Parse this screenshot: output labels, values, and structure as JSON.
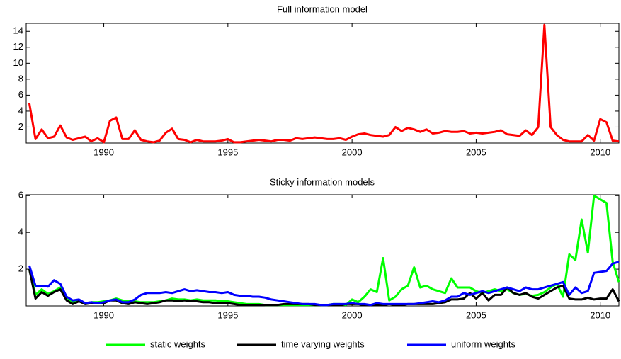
{
  "chart_data": [
    {
      "type": "line",
      "title": "Full information model",
      "x": [
        1987,
        1987.25,
        1987.5,
        1987.75,
        1988,
        1988.25,
        1988.5,
        1988.75,
        1989,
        1989.25,
        1989.5,
        1989.75,
        1990,
        1990.25,
        1990.5,
        1990.75,
        1991,
        1991.25,
        1991.5,
        1991.75,
        1992,
        1992.25,
        1992.5,
        1992.75,
        1993,
        1993.25,
        1993.5,
        1993.75,
        1994,
        1994.25,
        1994.5,
        1994.75,
        1995,
        1995.25,
        1995.5,
        1995.75,
        1996,
        1996.25,
        1996.5,
        1996.75,
        1997,
        1997.25,
        1997.5,
        1997.75,
        1998,
        1998.25,
        1998.5,
        1998.75,
        1999,
        1999.25,
        1999.5,
        1999.75,
        2000,
        2000.25,
        2000.5,
        2000.75,
        2001,
        2001.25,
        2001.5,
        2001.75,
        2002,
        2002.25,
        2002.5,
        2002.75,
        2003,
        2003.25,
        2003.5,
        2003.75,
        2004,
        2004.25,
        2004.5,
        2004.75,
        2005,
        2005.25,
        2005.5,
        2005.75,
        2006,
        2006.25,
        2006.5,
        2006.75,
        2007,
        2007.25,
        2007.5,
        2007.75,
        2008,
        2008.25,
        2008.5,
        2008.75,
        2009,
        2009.25,
        2009.5,
        2009.75,
        2010,
        2010.25,
        2010.5,
        2010.75
      ],
      "series": [
        {
          "color": "#ff0000",
          "values": [
            5.0,
            0.5,
            1.7,
            0.6,
            0.8,
            2.2,
            0.7,
            0.4,
            0.6,
            0.8,
            0.2,
            0.6,
            0.1,
            2.8,
            3.2,
            0.5,
            0.5,
            1.6,
            0.4,
            0.2,
            0.1,
            0.3,
            1.3,
            1.8,
            0.5,
            0.4,
            0.1,
            0.4,
            0.2,
            0.2,
            0.2,
            0.3,
            0.5,
            0.1,
            0.1,
            0.2,
            0.3,
            0.4,
            0.3,
            0.2,
            0.4,
            0.4,
            0.3,
            0.6,
            0.5,
            0.6,
            0.7,
            0.6,
            0.5,
            0.5,
            0.6,
            0.4,
            0.8,
            1.1,
            1.2,
            1.0,
            0.9,
            0.8,
            1.0,
            2.0,
            1.5,
            1.9,
            1.7,
            1.4,
            1.7,
            1.2,
            1.3,
            1.5,
            1.4,
            1.4,
            1.5,
            1.2,
            1.3,
            1.2,
            1.3,
            1.4,
            1.6,
            1.1,
            1.0,
            0.9,
            1.6,
            1.0,
            2.0,
            14.8,
            2.0,
            1.0,
            0.4,
            0.2,
            0.2,
            0.2,
            1.0,
            0.3,
            3.0,
            2.6,
            0.3,
            0.2
          ]
        }
      ],
      "xlim": [
        1986.875,
        2010.75
      ],
      "xticks": [
        1990,
        1995,
        2000,
        2005,
        2010
      ],
      "ylim": [
        0,
        15
      ],
      "yticks": [
        2,
        4,
        6,
        8,
        10,
        12,
        14
      ]
    },
    {
      "type": "line",
      "title": "Sticky information models",
      "x": [
        1987,
        1987.25,
        1987.5,
        1987.75,
        1988,
        1988.25,
        1988.5,
        1988.75,
        1989,
        1989.25,
        1989.5,
        1989.75,
        1990,
        1990.25,
        1990.5,
        1990.75,
        1991,
        1991.25,
        1991.5,
        1991.75,
        1992,
        1992.25,
        1992.5,
        1992.75,
        1993,
        1993.25,
        1993.5,
        1993.75,
        1994,
        1994.25,
        1994.5,
        1994.75,
        1995,
        1995.25,
        1995.5,
        1995.75,
        1996,
        1996.25,
        1996.5,
        1996.75,
        1997,
        1997.25,
        1997.5,
        1997.75,
        1998,
        1998.25,
        1998.5,
        1998.75,
        1999,
        1999.25,
        1999.5,
        1999.75,
        2000,
        2000.25,
        2000.5,
        2000.75,
        2001,
        2001.25,
        2001.5,
        2001.75,
        2002,
        2002.25,
        2002.5,
        2002.75,
        2003,
        2003.25,
        2003.5,
        2003.75,
        2004,
        2004.25,
        2004.5,
        2004.75,
        2005,
        2005.25,
        2005.5,
        2005.75,
        2006,
        2006.25,
        2006.5,
        2006.75,
        2007,
        2007.25,
        2007.5,
        2007.75,
        2008,
        2008.25,
        2008.5,
        2008.75,
        2009,
        2009.25,
        2009.5,
        2009.75,
        2010,
        2010.25,
        2010.5,
        2010.75
      ],
      "series": [
        {
          "name": "static weights",
          "color": "#00ff00",
          "values": [
            2.0,
            0.6,
            0.9,
            0.65,
            0.8,
            1.0,
            0.4,
            0.2,
            0.3,
            0.15,
            0.2,
            0.2,
            0.25,
            0.3,
            0.4,
            0.3,
            0.25,
            0.25,
            0.2,
            0.2,
            0.2,
            0.25,
            0.3,
            0.4,
            0.35,
            0.35,
            0.3,
            0.35,
            0.3,
            0.3,
            0.3,
            0.25,
            0.25,
            0.2,
            0.15,
            0.1,
            0.1,
            0.1,
            0.05,
            0.05,
            0.05,
            0.05,
            0.05,
            0.05,
            0.05,
            0.05,
            0.05,
            0.05,
            0.05,
            0.1,
            0.1,
            0.05,
            0.35,
            0.2,
            0.5,
            0.9,
            0.75,
            2.6,
            0.3,
            0.5,
            0.9,
            1.1,
            2.1,
            1.0,
            1.1,
            0.9,
            0.8,
            0.7,
            1.5,
            1.0,
            1.0,
            1.0,
            0.8,
            0.7,
            0.8,
            0.9,
            0.8,
            0.9,
            0.7,
            0.6,
            0.65,
            0.55,
            0.6,
            0.75,
            1.0,
            1.2,
            0.5,
            2.8,
            2.5,
            4.7,
            2.9,
            6.0,
            5.8,
            5.6,
            2.4,
            1.3
          ]
        },
        {
          "name": "time varying weights",
          "color": "#000000",
          "values": [
            2.0,
            0.4,
            0.75,
            0.55,
            0.75,
            0.9,
            0.3,
            0.1,
            0.25,
            0.1,
            0.15,
            0.15,
            0.15,
            0.3,
            0.3,
            0.15,
            0.1,
            0.2,
            0.15,
            0.1,
            0.15,
            0.2,
            0.3,
            0.3,
            0.25,
            0.3,
            0.25,
            0.25,
            0.2,
            0.2,
            0.15,
            0.15,
            0.15,
            0.1,
            0.05,
            0.05,
            0.05,
            0.05,
            0.05,
            0.05,
            0.05,
            0.1,
            0.1,
            0.1,
            0.1,
            0.1,
            0.05,
            0.05,
            0.05,
            0.05,
            0.05,
            0.1,
            0.1,
            0.1,
            0.05,
            0.05,
            0.05,
            0.05,
            0.1,
            0.05,
            0.05,
            0.1,
            0.1,
            0.1,
            0.1,
            0.1,
            0.15,
            0.2,
            0.35,
            0.35,
            0.4,
            0.7,
            0.4,
            0.7,
            0.3,
            0.6,
            0.6,
            1.0,
            0.7,
            0.6,
            0.7,
            0.5,
            0.4,
            0.6,
            0.8,
            1.0,
            1.1,
            0.4,
            0.35,
            0.35,
            0.45,
            0.35,
            0.4,
            0.4,
            0.9,
            0.25
          ]
        },
        {
          "name": "uniform weights",
          "color": "#0000ff",
          "values": [
            2.2,
            1.1,
            1.1,
            1.05,
            1.4,
            1.2,
            0.5,
            0.3,
            0.35,
            0.15,
            0.2,
            0.15,
            0.2,
            0.3,
            0.35,
            0.2,
            0.2,
            0.35,
            0.6,
            0.7,
            0.7,
            0.7,
            0.75,
            0.7,
            0.8,
            0.9,
            0.8,
            0.85,
            0.8,
            0.75,
            0.75,
            0.7,
            0.75,
            0.6,
            0.55,
            0.55,
            0.5,
            0.5,
            0.45,
            0.35,
            0.3,
            0.25,
            0.2,
            0.15,
            0.1,
            0.1,
            0.1,
            0.05,
            0.05,
            0.1,
            0.1,
            0.1,
            0.15,
            0.1,
            0.1,
            0.05,
            0.15,
            0.1,
            0.1,
            0.1,
            0.1,
            0.1,
            0.1,
            0.15,
            0.2,
            0.25,
            0.2,
            0.3,
            0.5,
            0.5,
            0.7,
            0.6,
            0.7,
            0.8,
            0.7,
            0.8,
            0.9,
            1.0,
            0.9,
            0.8,
            1.0,
            0.9,
            0.9,
            1.0,
            1.1,
            1.2,
            1.3,
            0.6,
            1.0,
            0.7,
            0.8,
            1.8,
            1.85,
            1.9,
            2.3,
            2.4
          ]
        }
      ],
      "xlim": [
        1986.875,
        2010.75
      ],
      "xticks": [
        1990,
        1995,
        2000,
        2005,
        2010
      ],
      "ylim": [
        0,
        6.05
      ],
      "yticks": [
        2,
        4,
        6
      ],
      "legend": "below"
    }
  ]
}
